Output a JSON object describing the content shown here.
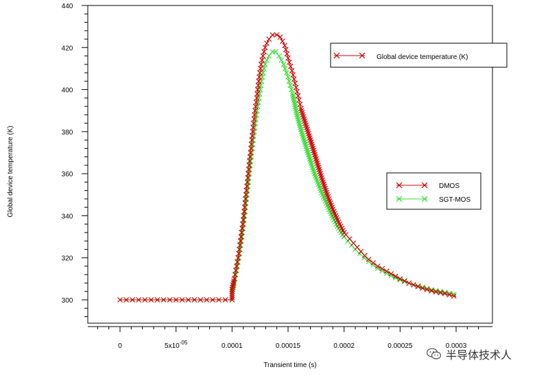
{
  "chart_data": {
    "type": "line",
    "title": "",
    "xlabel": "Transient time (s)",
    "ylabel": "Global device temperature (K)",
    "xlim": [
      -2.5e-05,
      0.00033
    ],
    "ylim": [
      292,
      440
    ],
    "x_ticks": [
      {
        "value": 0,
        "label": "0"
      },
      {
        "value": 5e-05,
        "label": "5x10",
        "exp": "-05"
      },
      {
        "value": 0.0001,
        "label": "0.0001"
      },
      {
        "value": 0.00015,
        "label": "0.00015"
      },
      {
        "value": 0.0002,
        "label": "0.0002"
      },
      {
        "value": 0.00025,
        "label": "0.00025"
      },
      {
        "value": 0.0003,
        "label": "0.0003"
      }
    ],
    "y_ticks": [
      300,
      320,
      340,
      360,
      380,
      400,
      420,
      440
    ],
    "legends": [
      {
        "entries": [
          {
            "name": "Global device temperature (K)",
            "color": "#cc0000"
          }
        ]
      },
      {
        "entries": [
          {
            "name": "DMOS",
            "color": "#cc0000"
          },
          {
            "name": "SGT-MOS",
            "color": "#33dd33"
          }
        ]
      }
    ],
    "series": [
      {
        "name": "DMOS",
        "color": "#cc0000",
        "points": [
          [
            0,
            300
          ],
          [
            5e-05,
            300
          ],
          [
            9e-05,
            300
          ],
          [
            0.0001,
            300
          ],
          [
            0.0001,
            305
          ],
          [
            0.000102,
            310
          ],
          [
            0.000104,
            316
          ],
          [
            0.000106,
            322
          ],
          [
            0.000108,
            330
          ],
          [
            0.00011,
            338
          ],
          [
            0.000112,
            348
          ],
          [
            0.000114,
            358
          ],
          [
            0.000116,
            368
          ],
          [
            0.000118,
            378
          ],
          [
            0.00012,
            388
          ],
          [
            0.000122,
            396
          ],
          [
            0.000124,
            405
          ],
          [
            0.000126,
            412
          ],
          [
            0.000128,
            417
          ],
          [
            0.00013,
            421
          ],
          [
            0.000133,
            424
          ],
          [
            0.000136,
            426
          ],
          [
            0.00014,
            426
          ],
          [
            0.000143,
            425
          ],
          [
            0.000147,
            421
          ],
          [
            0.00015,
            415
          ],
          [
            0.000154,
            408
          ],
          [
            0.000158,
            399
          ],
          [
            0.000162,
            390
          ],
          [
            0.000166,
            383
          ],
          [
            0.00017,
            376
          ],
          [
            0.000175,
            367
          ],
          [
            0.00018,
            358
          ],
          [
            0.000185,
            350
          ],
          [
            0.00019,
            343
          ],
          [
            0.000195,
            337
          ],
          [
            0.0002,
            332
          ],
          [
            0.00021,
            326
          ],
          [
            0.00022,
            320
          ],
          [
            0.00023,
            316
          ],
          [
            0.00024,
            313
          ],
          [
            0.00025,
            310
          ],
          [
            0.00026,
            307.5
          ],
          [
            0.00027,
            305.5
          ],
          [
            0.00028,
            304
          ],
          [
            0.00029,
            303
          ],
          [
            0.0003,
            301.5
          ]
        ],
        "marker_step": 2
      },
      {
        "name": "SGT-MOS",
        "color": "#33dd33",
        "points": [
          [
            0,
            300
          ],
          [
            5e-05,
            300
          ],
          [
            9e-05,
            300
          ],
          [
            0.0001,
            300
          ],
          [
            0.0001,
            303
          ],
          [
            0.000102,
            308
          ],
          [
            0.000104,
            314
          ],
          [
            0.000106,
            320
          ],
          [
            0.000108,
            327
          ],
          [
            0.00011,
            335
          ],
          [
            0.000112,
            344
          ],
          [
            0.000114,
            353
          ],
          [
            0.000116,
            363
          ],
          [
            0.000118,
            372
          ],
          [
            0.00012,
            381
          ],
          [
            0.000122,
            389
          ],
          [
            0.000124,
            396
          ],
          [
            0.000126,
            403
          ],
          [
            0.000128,
            409
          ],
          [
            0.00013,
            413
          ],
          [
            0.000133,
            416
          ],
          [
            0.000136,
            418
          ],
          [
            0.000139,
            418
          ],
          [
            0.000142,
            416
          ],
          [
            0.000146,
            412
          ],
          [
            0.00015,
            406
          ],
          [
            0.000154,
            398
          ],
          [
            0.000158,
            388
          ],
          [
            0.000162,
            380
          ],
          [
            0.000166,
            373
          ],
          [
            0.00017,
            366
          ],
          [
            0.000175,
            358
          ],
          [
            0.00018,
            351
          ],
          [
            0.000185,
            345
          ],
          [
            0.00019,
            339
          ],
          [
            0.000195,
            334
          ],
          [
            0.0002,
            330
          ],
          [
            0.00021,
            324
          ],
          [
            0.00022,
            319
          ],
          [
            0.00023,
            315
          ],
          [
            0.00024,
            312
          ],
          [
            0.00025,
            309.5
          ],
          [
            0.00026,
            307.5
          ],
          [
            0.00027,
            306
          ],
          [
            0.00028,
            304.5
          ],
          [
            0.00029,
            303.5
          ],
          [
            0.0003,
            302.5
          ]
        ],
        "marker_step": 1
      }
    ]
  },
  "watermark": {
    "text": "半导体技术人",
    "icon": "wechat-icon"
  }
}
